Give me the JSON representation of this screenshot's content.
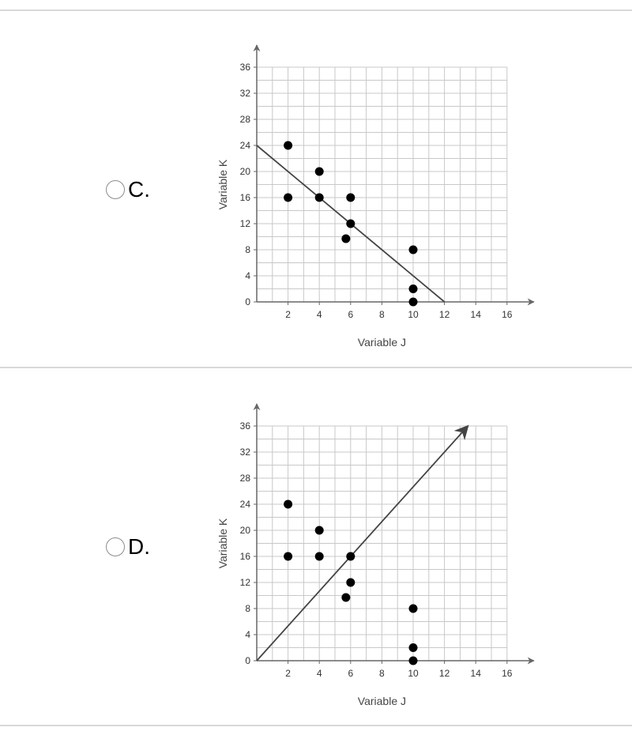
{
  "options": [
    {
      "label": "C.",
      "chart_data": {
        "type": "scatter",
        "xlabel": "Variable J",
        "ylabel": "Variable K",
        "xlim": [
          0,
          16
        ],
        "ylim": [
          0,
          36
        ],
        "x_ticks": [
          2,
          4,
          6,
          8,
          10,
          12,
          14,
          16
        ],
        "y_ticks": [
          0,
          4,
          8,
          12,
          16,
          20,
          24,
          28,
          32,
          36
        ],
        "grid": true,
        "points": [
          {
            "x": 2,
            "y": 24
          },
          {
            "x": 2,
            "y": 16
          },
          {
            "x": 4,
            "y": 20
          },
          {
            "x": 4,
            "y": 16
          },
          {
            "x": 6,
            "y": 16
          },
          {
            "x": 6,
            "y": 12
          },
          {
            "x": 5.7,
            "y": 9.7
          },
          {
            "x": 10,
            "y": 8
          },
          {
            "x": 10,
            "y": 2
          },
          {
            "x": 10,
            "y": 0
          }
        ],
        "line": {
          "x1": 0,
          "y1": 24,
          "x2": 12,
          "y2": 0,
          "arrow": false
        }
      }
    },
    {
      "label": "D.",
      "chart_data": {
        "type": "scatter",
        "xlabel": "Variable J",
        "ylabel": "Variable K",
        "xlim": [
          0,
          16
        ],
        "ylim": [
          0,
          36
        ],
        "x_ticks": [
          2,
          4,
          6,
          8,
          10,
          12,
          14,
          16
        ],
        "y_ticks": [
          0,
          4,
          8,
          12,
          16,
          20,
          24,
          28,
          32,
          36
        ],
        "grid": true,
        "points": [
          {
            "x": 2,
            "y": 24
          },
          {
            "x": 2,
            "y": 16
          },
          {
            "x": 4,
            "y": 20
          },
          {
            "x": 4,
            "y": 16
          },
          {
            "x": 6,
            "y": 16
          },
          {
            "x": 6,
            "y": 12
          },
          {
            "x": 5.7,
            "y": 9.7
          },
          {
            "x": 10,
            "y": 8
          },
          {
            "x": 10,
            "y": 2
          },
          {
            "x": 10,
            "y": 0
          }
        ],
        "line": {
          "x1": 0,
          "y1": 0,
          "x2": 13.5,
          "y2": 36,
          "arrow": true
        }
      }
    }
  ]
}
